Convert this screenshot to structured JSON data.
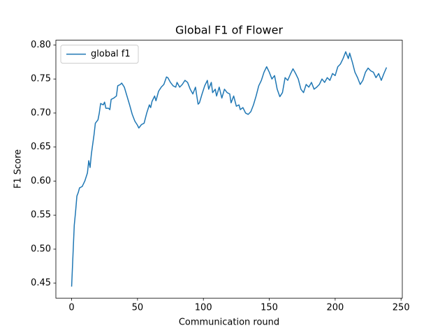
{
  "chart_data": {
    "type": "line",
    "title": "Global F1 of Flower",
    "x_label": "Communication round",
    "y_label": "F1 Score",
    "legend": "upper left",
    "xlim": [
      -11.95,
      250.95
    ],
    "ylim": [
      0.428,
      0.807
    ],
    "xticks": [
      0,
      50,
      100,
      150,
      200,
      250
    ],
    "yticks": [
      0.45,
      {
        "value": 0.5,
        "label": "0.50"
      },
      0.55,
      {
        "value": 0.6,
        "label": "0.60"
      },
      0.65,
      {
        "value": 0.7,
        "label": "0.70"
      },
      0.75,
      {
        "value": 0.8,
        "label": "0.80"
      }
    ],
    "x": [
      0,
      1,
      2,
      3,
      4,
      5,
      6,
      8,
      10,
      12,
      13,
      14,
      15,
      17,
      18,
      20,
      21,
      22,
      24,
      25,
      26,
      28,
      29,
      30,
      32,
      34,
      35,
      37,
      38,
      40,
      42,
      44,
      46,
      48,
      50,
      51,
      53,
      55,
      57,
      59,
      60,
      61,
      63,
      64,
      66,
      68,
      70,
      72,
      73,
      75,
      77,
      79,
      80,
      82,
      84,
      86,
      88,
      90,
      92,
      94,
      95,
      96,
      97,
      99,
      101,
      103,
      104,
      106,
      107,
      109,
      110,
      112,
      114,
      116,
      118,
      120,
      121,
      123,
      125,
      127,
      128,
      130,
      132,
      134,
      136,
      138,
      140,
      142,
      144,
      146,
      148,
      150,
      152,
      154,
      156,
      158,
      160,
      162,
      164,
      166,
      168,
      170,
      172,
      174,
      176,
      178,
      180,
      182,
      184,
      186,
      188,
      190,
      192,
      194,
      196,
      198,
      200,
      202,
      204,
      206,
      208,
      210,
      211,
      213,
      215,
      217,
      219,
      221,
      223,
      225,
      227,
      229,
      231,
      233,
      235,
      237,
      239
    ],
    "series": [
      {
        "name": "global f1",
        "color": "#1f77b4",
        "values": [
          0.445,
          0.49,
          0.535,
          0.555,
          0.578,
          0.583,
          0.59,
          0.592,
          0.6,
          0.612,
          0.63,
          0.62,
          0.64,
          0.668,
          0.685,
          0.69,
          0.7,
          0.714,
          0.712,
          0.716,
          0.707,
          0.707,
          0.705,
          0.72,
          0.722,
          0.725,
          0.74,
          0.742,
          0.744,
          0.738,
          0.725,
          0.712,
          0.698,
          0.688,
          0.682,
          0.678,
          0.683,
          0.685,
          0.7,
          0.712,
          0.708,
          0.717,
          0.725,
          0.718,
          0.732,
          0.738,
          0.742,
          0.753,
          0.752,
          0.745,
          0.74,
          0.738,
          0.745,
          0.738,
          0.742,
          0.748,
          0.745,
          0.735,
          0.728,
          0.738,
          0.725,
          0.713,
          0.715,
          0.728,
          0.74,
          0.748,
          0.735,
          0.745,
          0.73,
          0.735,
          0.725,
          0.738,
          0.722,
          0.735,
          0.73,
          0.728,
          0.715,
          0.725,
          0.71,
          0.712,
          0.705,
          0.708,
          0.7,
          0.698,
          0.702,
          0.712,
          0.725,
          0.74,
          0.748,
          0.76,
          0.768,
          0.76,
          0.75,
          0.755,
          0.735,
          0.724,
          0.73,
          0.752,
          0.748,
          0.757,
          0.765,
          0.758,
          0.75,
          0.735,
          0.73,
          0.742,
          0.738,
          0.745,
          0.735,
          0.738,
          0.742,
          0.75,
          0.745,
          0.752,
          0.748,
          0.758,
          0.755,
          0.768,
          0.772,
          0.78,
          0.79,
          0.78,
          0.788,
          0.775,
          0.76,
          0.752,
          0.742,
          0.748,
          0.76,
          0.766,
          0.762,
          0.76,
          0.752,
          0.758,
          0.748,
          0.758,
          0.767
        ]
      }
    ]
  }
}
